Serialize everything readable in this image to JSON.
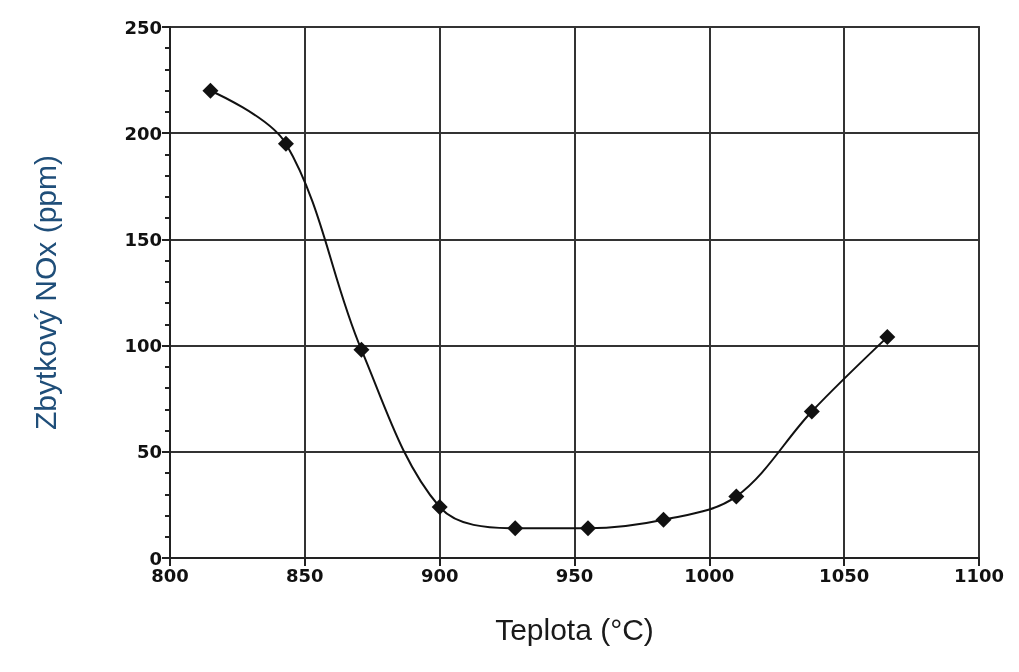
{
  "chart_data": {
    "type": "line",
    "xlabel": "Teplota (°C)",
    "ylabel": "Zbytkový NOx (ppm)",
    "x": [
      815,
      843,
      871,
      900,
      928,
      955,
      983,
      1010,
      1038,
      1066
    ],
    "series": [
      {
        "color": "#111111",
        "values": [
          220,
          195,
          98,
          24,
          14,
          14,
          18,
          29,
          69,
          104
        ]
      }
    ],
    "xlim": [
      800,
      1100
    ],
    "xticks": [
      800,
      850,
      900,
      950,
      1000,
      1050,
      1100
    ],
    "ylim": [
      0,
      250
    ],
    "yticks": [
      0,
      50,
      100,
      150,
      200,
      250
    ],
    "grid": true,
    "marker": "diamond",
    "line_style": "solid"
  }
}
